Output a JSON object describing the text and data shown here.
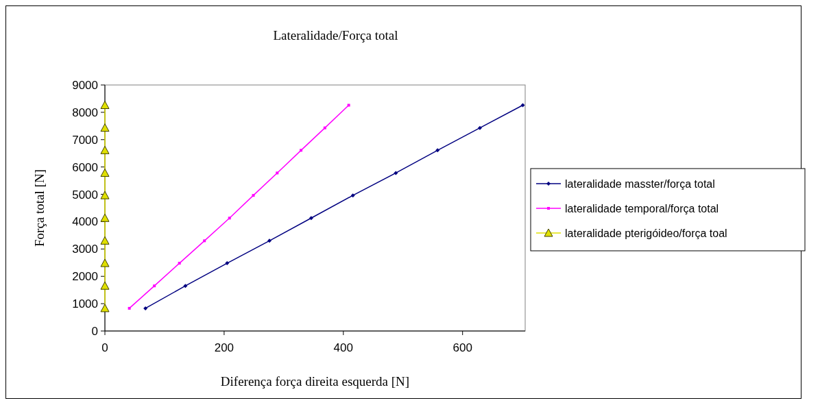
{
  "chart_data": {
    "type": "line",
    "title": "Lateralidade/Força total",
    "xlabel": "Diferença força direita esquerda [N]",
    "ylabel": "Força total [N]",
    "xlim": [
      0,
      705
    ],
    "xticks": [
      0,
      200,
      400,
      600
    ],
    "ylim": [
      0,
      9000
    ],
    "yticks": [
      0,
      1000,
      2000,
      3000,
      4000,
      5000,
      6000,
      7000,
      8000,
      9000
    ],
    "grid": false,
    "legend": "right",
    "series": [
      {
        "name": "lateralidade masster/força total",
        "color": "#000080",
        "marker": "diamond",
        "x": [
          68,
          135,
          205,
          276,
          346,
          416,
          488,
          558,
          629,
          701
        ],
        "values": [
          830,
          1650,
          2480,
          3300,
          4130,
          4960,
          5780,
          6610,
          7430,
          8260
        ]
      },
      {
        "name": "lateralidade temporal/força total",
        "color": "#ff00ff",
        "marker": "square",
        "x": [
          41,
          83,
          125,
          167,
          209,
          249,
          289,
          329,
          369,
          409
        ],
        "values": [
          830,
          1650,
          2480,
          3300,
          4130,
          4960,
          5780,
          6610,
          7430,
          8260
        ]
      },
      {
        "name": "lateralidade pterigóideo/força toal",
        "color": "#e0e000",
        "marker": "triangle",
        "x": [
          0,
          0,
          0,
          0,
          0,
          0,
          0,
          0,
          0,
          0
        ],
        "values": [
          830,
          1650,
          2480,
          3300,
          4130,
          4960,
          5780,
          6610,
          7430,
          8260
        ]
      }
    ]
  }
}
